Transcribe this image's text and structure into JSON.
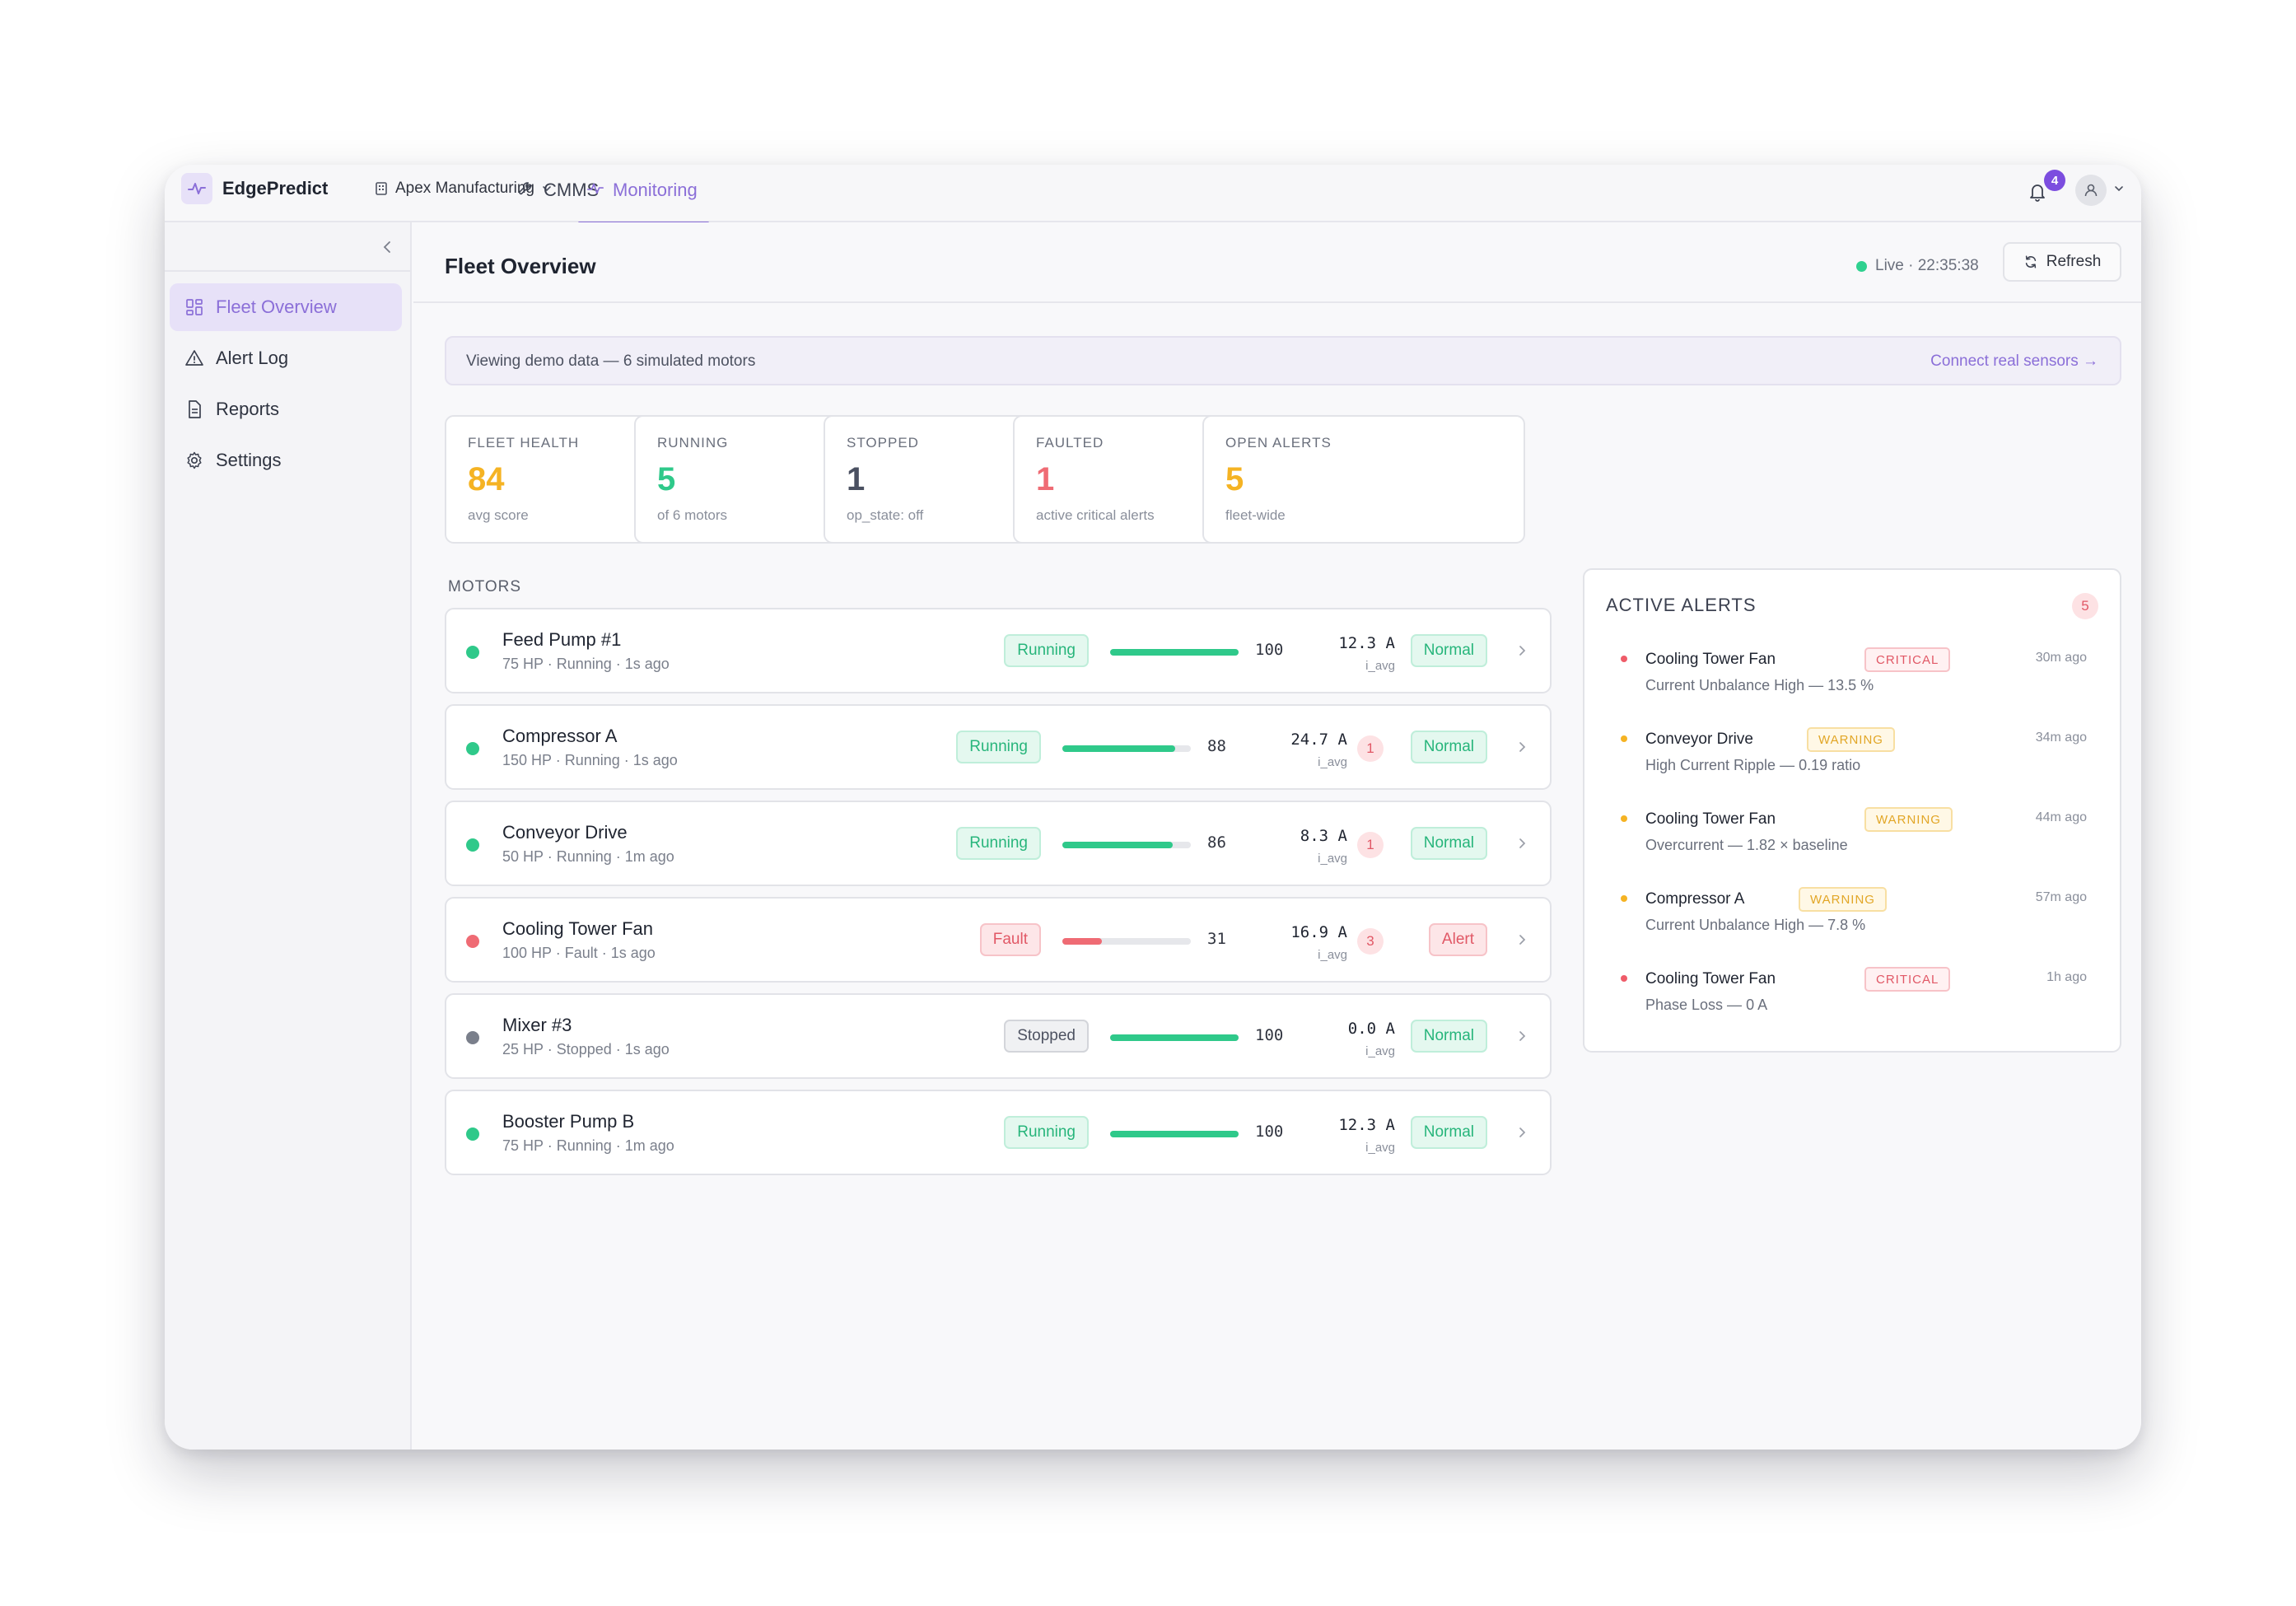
{
  "app": {
    "brand": "EdgePredict",
    "org": "Apex Manufacturing"
  },
  "nav": {
    "tabs": [
      {
        "label": "CMMS"
      },
      {
        "label": "Monitoring"
      }
    ],
    "notifications": "4"
  },
  "sidebar": {
    "items": [
      {
        "label": "Fleet Overview"
      },
      {
        "label": "Alert Log"
      },
      {
        "label": "Reports"
      },
      {
        "label": "Settings"
      }
    ]
  },
  "header": {
    "title": "Fleet Overview",
    "live": "Live · 22:35:38",
    "refresh_label": "Refresh"
  },
  "banner": {
    "text": "Viewing demo data — 6 simulated motors",
    "link": "Connect real sensors →"
  },
  "stats": [
    {
      "label": "FLEET HEALTH",
      "value": "84",
      "sub": "avg score",
      "color": "#f5b323"
    },
    {
      "label": "RUNNING",
      "value": "5",
      "sub": "of 6 motors",
      "color": "#2fc98a"
    },
    {
      "label": "STOPPED",
      "value": "1",
      "sub": "op_state: off",
      "color": "#4a5061"
    },
    {
      "label": "FAULTED",
      "value": "1",
      "sub": "active critical alerts",
      "color": "#ef6b74"
    },
    {
      "label": "OPEN ALERTS",
      "value": "5",
      "sub": "fleet-wide",
      "color": "#f5b323"
    }
  ],
  "motors_label": "MOTORS",
  "motors": [
    {
      "name": "Feed Pump #1",
      "sub": "75 HP · Running · 1s ago",
      "state": "Running",
      "health": 100,
      "health_label": "100",
      "amps": "12.3 A",
      "amps_label": "i_avg",
      "alerts": "",
      "condition": "Normal"
    },
    {
      "name": "Compressor A",
      "sub": "150 HP · Running · 1s ago",
      "state": "Running",
      "health": 88,
      "health_label": "88",
      "amps": "24.7 A",
      "amps_label": "i_avg",
      "alerts": "1",
      "condition": "Normal"
    },
    {
      "name": "Conveyor Drive",
      "sub": "50 HP · Running · 1m ago",
      "state": "Running",
      "health": 86,
      "health_label": "86",
      "amps": "8.3 A",
      "amps_label": "i_avg",
      "alerts": "1",
      "condition": "Normal"
    },
    {
      "name": "Cooling Tower Fan",
      "sub": "100 HP · Fault · 1s ago",
      "state": "Fault",
      "health": 31,
      "health_label": "31",
      "amps": "16.9 A",
      "amps_label": "i_avg",
      "alerts": "3",
      "condition": "Alert"
    },
    {
      "name": "Mixer #3",
      "sub": "25 HP · Stopped · 1s ago",
      "state": "Stopped",
      "health": 100,
      "health_label": "100",
      "amps": "0.0 A",
      "amps_label": "i_avg",
      "alerts": "",
      "condition": "Normal"
    },
    {
      "name": "Booster Pump B",
      "sub": "75 HP · Running · 1m ago",
      "state": "Running",
      "health": 100,
      "health_label": "100",
      "amps": "12.3 A",
      "amps_label": "i_avg",
      "alerts": "",
      "condition": "Normal"
    }
  ],
  "alerts": {
    "title": "ACTIVE ALERTS",
    "count": "5",
    "items": [
      {
        "motor": "Cooling Tower Fan",
        "severity": "CRITICAL",
        "desc": "Current Unbalance High — 13.5 %",
        "time": "30m ago"
      },
      {
        "motor": "Conveyor Drive",
        "severity": "WARNING",
        "desc": "High Current Ripple — 0.19 ratio",
        "time": "34m ago"
      },
      {
        "motor": "Cooling Tower Fan",
        "severity": "WARNING",
        "desc": "Overcurrent — 1.82 × baseline",
        "time": "44m ago"
      },
      {
        "motor": "Compressor A",
        "severity": "WARNING",
        "desc": "Current Unbalance High — 7.8 %",
        "time": "57m ago"
      },
      {
        "motor": "Cooling Tower Fan",
        "severity": "CRITICAL",
        "desc": "Phase Loss — 0 A",
        "time": "1h ago"
      }
    ]
  },
  "colors": {
    "accent": "#8b6fd8",
    "running": "#2fc98a",
    "fault": "#ef6b74",
    "stopped": "#7a7f8b",
    "warning": "#f5b323"
  }
}
